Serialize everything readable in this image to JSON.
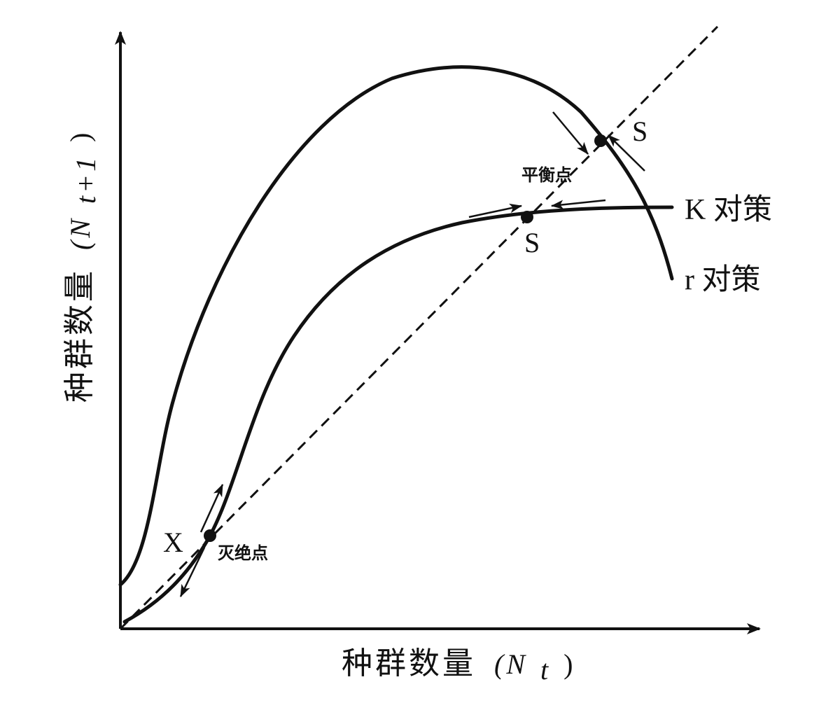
{
  "axes": {
    "y_label": "种群数量",
    "y_symbol": "(N",
    "y_subscript": "t+1",
    "y_close": ")",
    "x_label": "种群数量",
    "x_symbol": "(N",
    "x_subscript": "t",
    "x_close": ")"
  },
  "points": {
    "extinction_marker": "X",
    "extinction_label": "灭绝点",
    "equilibrium_label": "平衡点",
    "r_stable_marker": "S",
    "k_stable_marker": "S"
  },
  "curves": {
    "k_strategy_label": "K 对策",
    "r_strategy_label": "r 对策"
  },
  "style": {
    "ink": "#111111",
    "background": "#ffffff"
  }
}
